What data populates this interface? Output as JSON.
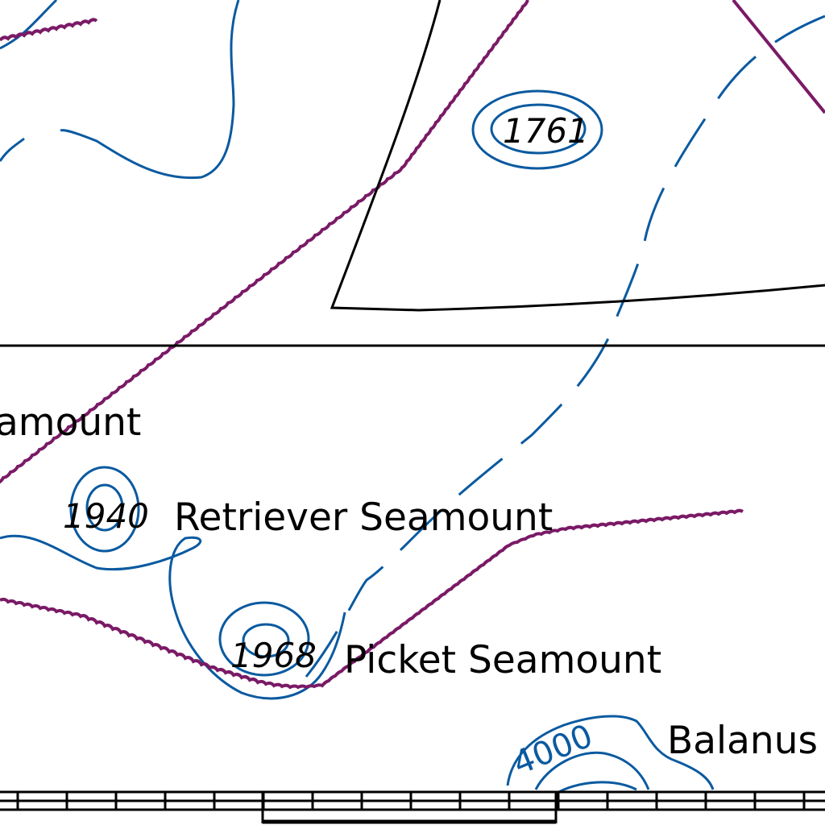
{
  "map": {
    "labels": {
      "seamount_partial": "amount",
      "retriever_depth": "1940",
      "retriever_name": "Retriever Seamount",
      "picket_depth": "1968",
      "picket_name": "Picket Seamount",
      "top_depth": "1761",
      "contour_value": "4000",
      "balanus_partial": "Balanus"
    },
    "colors": {
      "contour": "#0a5aa0",
      "wavy_boundary": "#7a1a66",
      "line": "#000000",
      "background": "#ffffff"
    }
  }
}
